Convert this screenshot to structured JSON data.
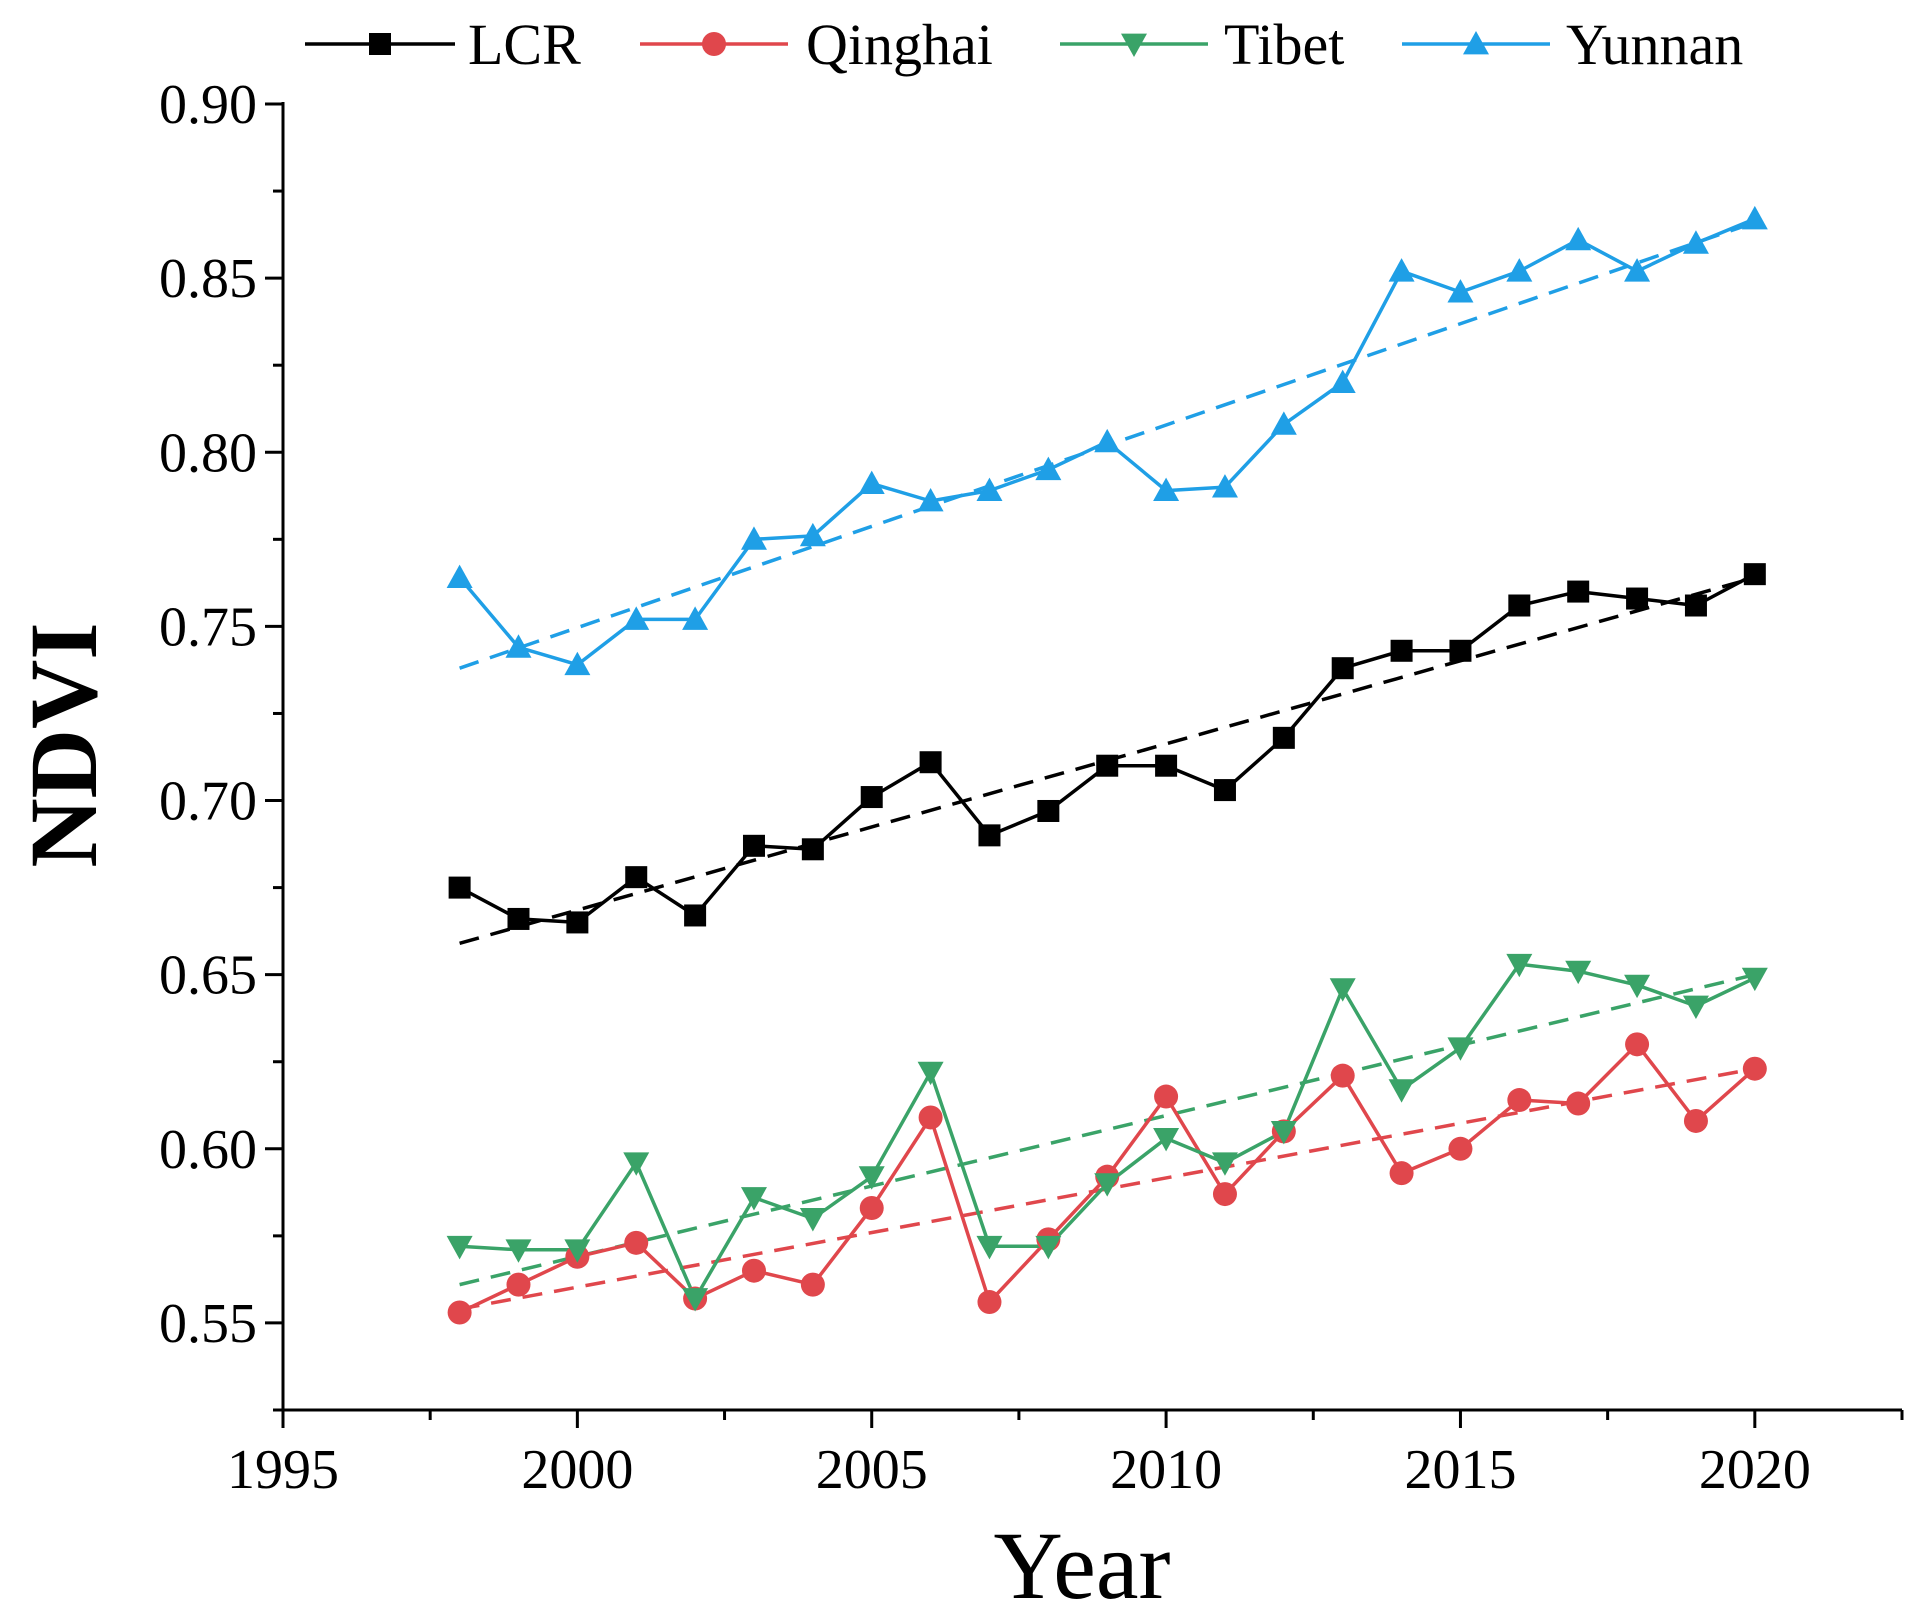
{
  "chart_data": {
    "type": "line",
    "title": "",
    "xlabel": "Year",
    "ylabel": "NDVI",
    "xlim": [
      1995,
      2022.5
    ],
    "ylim": [
      0.525,
      0.9
    ],
    "xticks": [
      1995,
      2000,
      2005,
      2010,
      2015,
      2020
    ],
    "xtick_labels": [
      "1995",
      "2000",
      "2005",
      "2010",
      "2015",
      "2020"
    ],
    "yticks": [
      0.55,
      0.6,
      0.65,
      0.7,
      0.75,
      0.8,
      0.85,
      0.9
    ],
    "ytick_labels": [
      "0.55",
      "0.60",
      "0.65",
      "0.70",
      "0.75",
      "0.80",
      "0.85",
      "0.90"
    ],
    "legend_position": "top",
    "grid": false,
    "x": [
      1998,
      1999,
      2000,
      2001,
      2002,
      2003,
      2004,
      2005,
      2006,
      2007,
      2008,
      2009,
      2010,
      2011,
      2012,
      2013,
      2014,
      2015,
      2016,
      2017,
      2018,
      2019,
      2020
    ],
    "series": [
      {
        "name": "LCR",
        "color": "#000000",
        "marker": "square",
        "values": [
          0.675,
          0.666,
          0.665,
          0.678,
          0.667,
          0.687,
          0.686,
          0.701,
          0.711,
          0.69,
          0.697,
          0.71,
          0.71,
          0.703,
          0.718,
          0.738,
          0.743,
          0.743,
          0.756,
          0.76,
          0.758,
          0.756,
          0.765
        ],
        "trend": [
          0.659,
          0.764
        ]
      },
      {
        "name": "Qinghai",
        "color": "#e0474c",
        "marker": "circle",
        "values": [
          0.553,
          0.561,
          0.569,
          0.573,
          0.557,
          0.565,
          0.561,
          0.583,
          0.609,
          0.556,
          0.574,
          0.592,
          0.615,
          0.587,
          0.605,
          0.621,
          0.593,
          0.6,
          0.614,
          0.613,
          0.63,
          0.608,
          0.623
        ],
        "trend": [
          0.554,
          0.623
        ]
      },
      {
        "name": "Tibet",
        "color": "#3aa368",
        "marker": "triangle-down",
        "values": [
          0.572,
          0.571,
          0.571,
          0.596,
          0.557,
          0.586,
          0.58,
          0.592,
          0.622,
          0.572,
          0.572,
          0.59,
          0.603,
          0.596,
          0.605,
          0.646,
          0.617,
          0.629,
          0.653,
          0.651,
          0.647,
          0.641,
          0.649
        ],
        "trend": [
          0.561,
          0.65
        ]
      },
      {
        "name": "Yunnan",
        "color": "#1f9fe6",
        "marker": "triangle-up",
        "values": [
          0.764,
          0.744,
          0.739,
          0.752,
          0.752,
          0.775,
          0.776,
          0.791,
          0.786,
          0.789,
          0.795,
          0.803,
          0.789,
          0.79,
          0.808,
          0.82,
          0.852,
          0.846,
          0.852,
          0.861,
          0.852,
          0.86,
          0.867
        ],
        "trend": [
          0.738,
          0.866
        ]
      }
    ]
  }
}
